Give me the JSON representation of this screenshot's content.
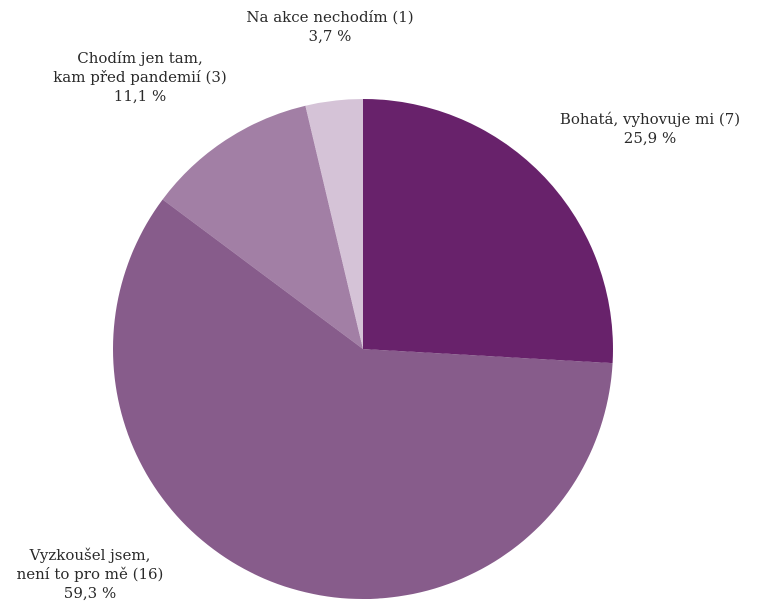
{
  "chart_data": {
    "type": "pie",
    "title": "",
    "start_angle_deg": 0,
    "direction": "clockwise",
    "slices": [
      {
        "label_lines": [
          "Bohatá, vyhovuje mi (7)"
        ],
        "count": 7,
        "percent_label": "25,9 %",
        "value": 25.9,
        "color": "#68226b"
      },
      {
        "label_lines": [
          "Vyzkoušel jsem,",
          "není to pro mě (16)"
        ],
        "count": 16,
        "percent_label": "59,3 %",
        "value": 59.3,
        "color": "#875c8b"
      },
      {
        "label_lines": [
          "Chodím jen tam,",
          "kam před pandemií (3)"
        ],
        "count": 3,
        "percent_label": "11,1 %",
        "value": 11.1,
        "color": "#a27fa5"
      },
      {
        "label_lines": [
          "Na akce nechodím (1)"
        ],
        "count": 1,
        "percent_label": "3,7 %",
        "value": 3.7,
        "color": "#d5c3d7"
      }
    ]
  }
}
